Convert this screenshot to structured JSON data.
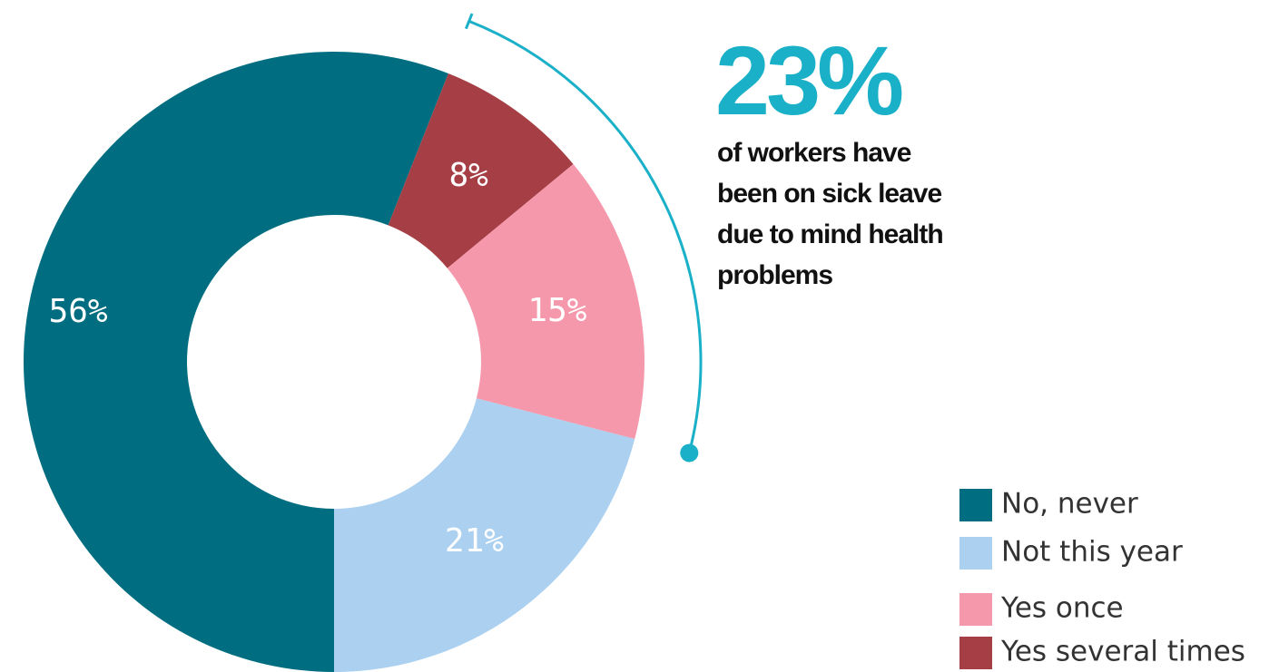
{
  "chart_data": {
    "type": "donut",
    "categories": [
      "No, never",
      "Not this year",
      "Yes once",
      "Yes several times"
    ],
    "values": [
      56,
      21,
      15,
      8
    ],
    "value_labels": [
      "56%",
      "21%",
      "15%",
      "8%"
    ],
    "colors": [
      "#006e80",
      "#acd1f0",
      "#f598ab",
      "#a63f45"
    ],
    "legend": "bottom-right",
    "annotation": {
      "value": "23%",
      "lines": [
        "of workers have",
        "been on sick leave",
        "due to mind health",
        "problems"
      ]
    }
  }
}
